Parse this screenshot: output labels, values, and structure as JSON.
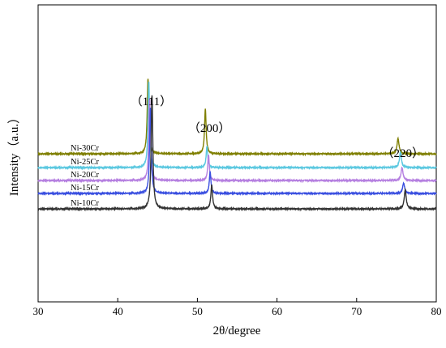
{
  "chart_data": {
    "type": "line",
    "xlabel": "2θ/degree",
    "ylabel": "Intensity（a.u.）",
    "xlim": [
      30,
      80
    ],
    "x_ticks": [
      30,
      40,
      50,
      60,
      70,
      80
    ],
    "y_ticks_shown": false,
    "grid": false,
    "legend": "none",
    "peak_annotations": [
      {
        "label": "（111）",
        "x": 44.2
      },
      {
        "label": "（200）",
        "x": 51.5
      },
      {
        "label": "（220）",
        "x": 75.8
      }
    ],
    "series": [
      {
        "name": "Ni-30Cr",
        "color": "#7f7f00",
        "baseline": 0.82,
        "peaks": [
          {
            "x": 43.8,
            "h": 0.87,
            "w": 0.12
          },
          {
            "x": 51.0,
            "h": 0.52,
            "w": 0.12
          },
          {
            "x": 75.2,
            "h": 0.18,
            "w": 0.15
          }
        ]
      },
      {
        "name": "Ni-25Cr",
        "color": "#5bc8e0",
        "baseline": 0.66,
        "peaks": [
          {
            "x": 43.9,
            "h": 1.0,
            "w": 0.12
          },
          {
            "x": 51.2,
            "h": 0.25,
            "w": 0.12
          },
          {
            "x": 75.5,
            "h": 0.18,
            "w": 0.15
          }
        ]
      },
      {
        "name": "Ni-20Cr",
        "color": "#b57fe0",
        "baseline": 0.51,
        "peaks": [
          {
            "x": 44.0,
            "h": 0.95,
            "w": 0.12
          },
          {
            "x": 51.4,
            "h": 0.3,
            "w": 0.12
          },
          {
            "x": 75.7,
            "h": 0.15,
            "w": 0.15
          }
        ]
      },
      {
        "name": "Ni-15Cr",
        "color": "#3a4fe0",
        "baseline": 0.36,
        "peaks": [
          {
            "x": 44.1,
            "h": 1.0,
            "w": 0.12
          },
          {
            "x": 51.6,
            "h": 0.25,
            "w": 0.12
          },
          {
            "x": 75.9,
            "h": 0.12,
            "w": 0.15
          }
        ]
      },
      {
        "name": "Ni-10Cr",
        "color": "#333333",
        "baseline": 0.18,
        "peaks": [
          {
            "x": 44.3,
            "h": 1.32,
            "w": 0.13
          },
          {
            "x": 51.8,
            "h": 0.28,
            "w": 0.13
          },
          {
            "x": 76.1,
            "h": 0.22,
            "w": 0.15
          }
        ]
      }
    ],
    "ylim": [
      -0.9,
      2.55
    ]
  }
}
